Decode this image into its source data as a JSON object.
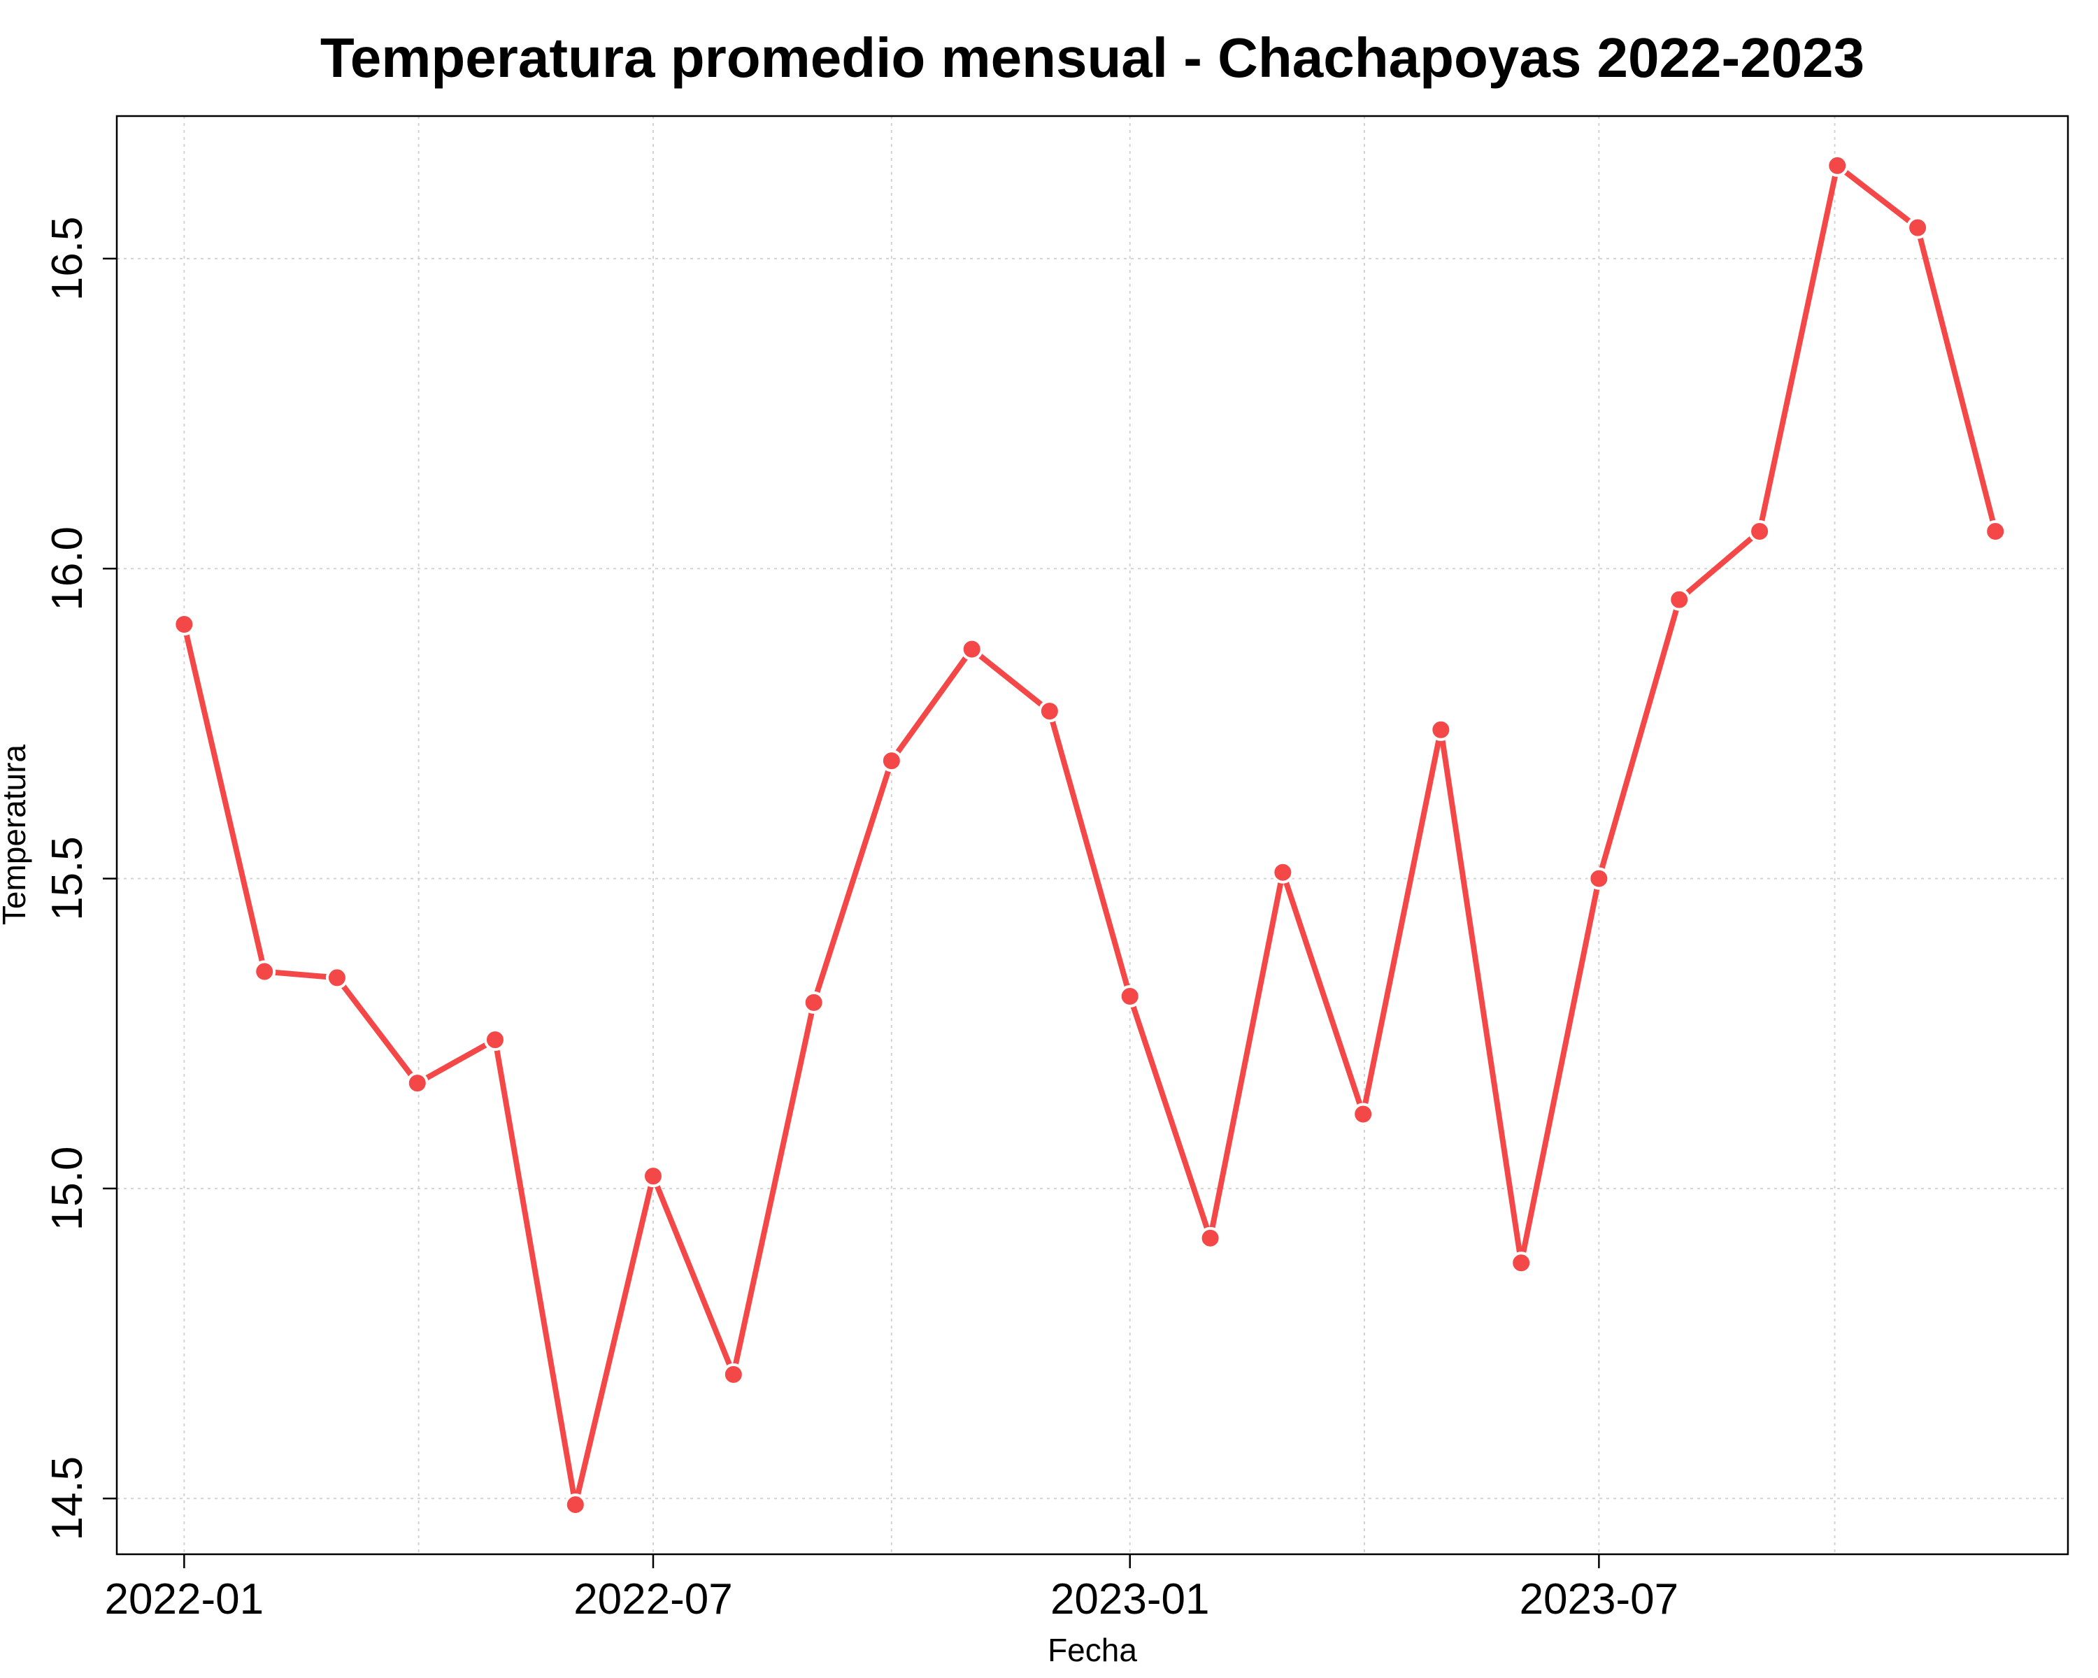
{
  "chart_data": {
    "type": "line",
    "title": "Temperatura promedio mensual - Chachapoyas 2022-2023",
    "xlabel": "Fecha",
    "ylabel": "Temperatura",
    "x_ticks": [
      "2022-01",
      "2022-07",
      "2023-01",
      "2023-07"
    ],
    "y_ticks": [
      "14.5",
      "15.0",
      "15.5",
      "16.0",
      "16.5"
    ],
    "ylim": [
      14.41,
      16.73
    ],
    "xlim": [
      "2021-12-06",
      "2023-12-29"
    ],
    "grid": true,
    "legend": "none",
    "line_color": "#f44848",
    "series": [
      {
        "x": [
          "2022-01-01",
          "2022-02-01",
          "2022-03-01",
          "2022-04-01",
          "2022-05-01",
          "2022-06-01",
          "2022-07-01",
          "2022-08-01",
          "2022-09-01",
          "2022-10-01",
          "2022-11-01",
          "2022-12-01",
          "2023-01-01",
          "2023-02-01",
          "2023-03-01",
          "2023-04-01",
          "2023-05-01",
          "2023-06-01",
          "2023-07-01",
          "2023-08-01",
          "2023-09-01",
          "2023-10-01",
          "2023-11-01",
          "2023-12-01"
        ],
        "values": [
          15.91,
          15.35,
          15.34,
          15.17,
          15.24,
          14.49,
          15.02,
          14.7,
          15.3,
          15.69,
          15.87,
          15.77,
          15.31,
          14.92,
          15.51,
          15.12,
          15.74,
          14.88,
          15.5,
          15.95,
          16.06,
          16.65,
          16.55,
          16.06
        ]
      }
    ]
  }
}
